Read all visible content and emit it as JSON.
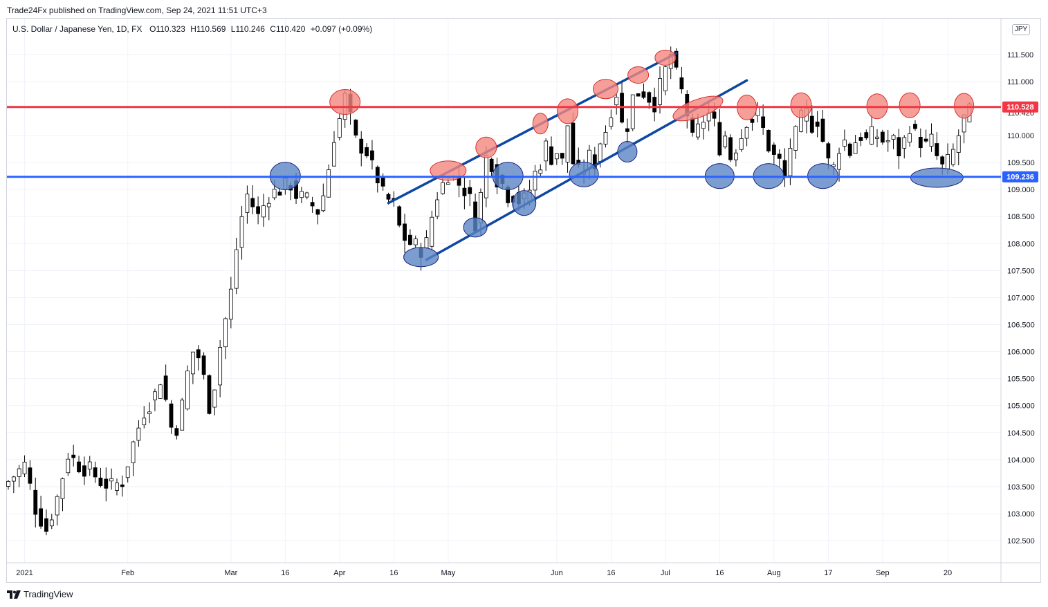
{
  "header": {
    "published": "Trade24Fx published on TradingView.com, Sep 24, 2021 11:51 UTC+3"
  },
  "legend": {
    "symbol": "U.S. Dollar / Japanese Yen, 1D, FX",
    "open": "O110.323",
    "high": "H110.569",
    "low": "L110.246",
    "close": "C110.420",
    "change": "+0.097 (+0.09%)"
  },
  "currency": "JPY",
  "footer": {
    "brand": "TradingView"
  },
  "colors": {
    "resistance": "#f23645",
    "support": "#2962ff",
    "channel": "#0d47a1",
    "red_marker_fill": "#f4877f",
    "blue_marker_fill": "#5b84c4",
    "candle_up": "#ffffff",
    "candle_down": "#000000"
  },
  "chart_data": {
    "type": "candlestick",
    "title": "U.S. Dollar / Japanese Yen, 1D, FX",
    "ylim": [
      102.0,
      112.0
    ],
    "y_ticks": [
      "102.500",
      "103.000",
      "103.500",
      "104.000",
      "104.500",
      "105.000",
      "105.500",
      "106.000",
      "106.500",
      "107.000",
      "107.500",
      "108.000",
      "108.500",
      "109.000",
      "109.500",
      "110.000",
      "110.420",
      "111.000",
      "111.500"
    ],
    "x_labels": [
      {
        "label": "2021",
        "idx": 3
      },
      {
        "label": "Feb",
        "idx": 22
      },
      {
        "label": "Mar",
        "idx": 41
      },
      {
        "label": "16",
        "idx": 51
      },
      {
        "label": "Apr",
        "idx": 61
      },
      {
        "label": "16",
        "idx": 71
      },
      {
        "label": "May",
        "idx": 81
      },
      {
        "label": "Jun",
        "idx": 101
      },
      {
        "label": "16",
        "idx": 111
      },
      {
        "label": "Jul",
        "idx": 121
      },
      {
        "label": "16",
        "idx": 131
      },
      {
        "label": "Aug",
        "idx": 141
      },
      {
        "label": "17",
        "idx": 151
      },
      {
        "label": "Sep",
        "idx": 161
      },
      {
        "label": "20",
        "idx": 173
      }
    ],
    "n_bars": 178,
    "levels": [
      {
        "name": "resistance",
        "value": 110.528,
        "label": "110.528",
        "color": "#f23645"
      },
      {
        "name": "support",
        "value": 109.236,
        "label": "109.236",
        "color": "#2962ff"
      }
    ],
    "current_price": {
      "value": 110.42,
      "label": "110.420"
    },
    "channel_lines": [
      {
        "name": "channel-upper",
        "from": {
          "idx": 70,
          "price": 108.75
        },
        "to": {
          "idx": 123,
          "price": 111.52
        }
      },
      {
        "name": "channel-lower",
        "from": {
          "idx": 77,
          "price": 107.7
        },
        "to": {
          "idx": 136,
          "price": 111.02
        }
      }
    ],
    "markers": [
      {
        "color": "red",
        "idx": 62,
        "price": 110.62,
        "rx": 22,
        "ry": 18
      },
      {
        "color": "red",
        "idx": 81,
        "price": 109.35,
        "rx": 26,
        "ry": 14
      },
      {
        "color": "red",
        "idx": 88,
        "price": 109.78,
        "rx": 15,
        "ry": 15
      },
      {
        "color": "red",
        "idx": 98,
        "price": 110.22,
        "rx": 11,
        "ry": 15
      },
      {
        "color": "red",
        "idx": 103,
        "price": 110.45,
        "rx": 15,
        "ry": 18
      },
      {
        "color": "red",
        "idx": 110,
        "price": 110.86,
        "rx": 18,
        "ry": 14
      },
      {
        "color": "red",
        "idx": 116,
        "price": 111.12,
        "rx": 15,
        "ry": 12
      },
      {
        "color": "red",
        "idx": 121,
        "price": 111.44,
        "rx": 15,
        "ry": 11
      },
      {
        "color": "red",
        "idx": 127,
        "price": 110.5,
        "rx": 38,
        "ry": 13,
        "rot": -20
      },
      {
        "color": "red",
        "idx": 136,
        "price": 110.52,
        "rx": 14,
        "ry": 18
      },
      {
        "color": "red",
        "idx": 146,
        "price": 110.56,
        "rx": 15,
        "ry": 18
      },
      {
        "color": "red",
        "idx": 160,
        "price": 110.54,
        "rx": 15,
        "ry": 18
      },
      {
        "color": "red",
        "idx": 166,
        "price": 110.56,
        "rx": 15,
        "ry": 18
      },
      {
        "color": "red",
        "idx": 176,
        "price": 110.55,
        "rx": 14,
        "ry": 18
      },
      {
        "color": "blue",
        "idx": 51,
        "price": 109.25,
        "rx": 22,
        "ry": 20
      },
      {
        "color": "blue",
        "idx": 76,
        "price": 107.75,
        "rx": 25,
        "ry": 14
      },
      {
        "color": "blue",
        "idx": 86,
        "price": 108.3,
        "rx": 17,
        "ry": 14
      },
      {
        "color": "blue",
        "idx": 92,
        "price": 109.25,
        "rx": 22,
        "ry": 20
      },
      {
        "color": "blue",
        "idx": 95,
        "price": 108.75,
        "rx": 17,
        "ry": 18
      },
      {
        "color": "blue",
        "idx": 106,
        "price": 109.28,
        "rx": 21,
        "ry": 18
      },
      {
        "color": "blue",
        "idx": 114,
        "price": 109.7,
        "rx": 14,
        "ry": 15
      },
      {
        "color": "blue",
        "idx": 131,
        "price": 109.25,
        "rx": 21,
        "ry": 18
      },
      {
        "color": "blue",
        "idx": 140,
        "price": 109.25,
        "rx": 22,
        "ry": 18
      },
      {
        "color": "blue",
        "idx": 150,
        "price": 109.25,
        "rx": 22,
        "ry": 18
      },
      {
        "color": "blue",
        "idx": 171,
        "price": 109.22,
        "rx": 38,
        "ry": 14
      }
    ],
    "close_path": [
      [
        0,
        103.6
      ],
      [
        3,
        103.9
      ],
      [
        5,
        103.1
      ],
      [
        7,
        102.7
      ],
      [
        9,
        103.3
      ],
      [
        11,
        104.1
      ],
      [
        13,
        103.9
      ],
      [
        15,
        103.8
      ],
      [
        17,
        103.6
      ],
      [
        19,
        103.5
      ],
      [
        21,
        103.6
      ],
      [
        23,
        104.3
      ],
      [
        25,
        104.9
      ],
      [
        27,
        105.2
      ],
      [
        28,
        105.5
      ],
      [
        29,
        105.1
      ],
      [
        30,
        104.6
      ],
      [
        31,
        104.6
      ],
      [
        32,
        105.0
      ],
      [
        33,
        105.6
      ],
      [
        34,
        106.0
      ],
      [
        35,
        105.9
      ],
      [
        36,
        105.5
      ],
      [
        37,
        105.0
      ],
      [
        38,
        105.4
      ],
      [
        39,
        106.1
      ],
      [
        40,
        106.6
      ],
      [
        41,
        107.1
      ],
      [
        42,
        107.9
      ],
      [
        43,
        108.5
      ],
      [
        44,
        108.9
      ],
      [
        45,
        108.7
      ],
      [
        46,
        108.5
      ],
      [
        48,
        108.9
      ],
      [
        50,
        109.0
      ],
      [
        52,
        109.1
      ],
      [
        53,
        108.9
      ],
      [
        55,
        108.8
      ],
      [
        56,
        108.7
      ],
      [
        57,
        108.6
      ],
      [
        58,
        108.9
      ],
      [
        59,
        109.4
      ],
      [
        60,
        110.0
      ],
      [
        61,
        110.3
      ],
      [
        62,
        110.7
      ],
      [
        63,
        110.3
      ],
      [
        64,
        109.9
      ],
      [
        65,
        109.8
      ],
      [
        66,
        109.7
      ],
      [
        67,
        109.4
      ],
      [
        68,
        109.2
      ],
      [
        69,
        108.9
      ],
      [
        70,
        108.8
      ],
      [
        71,
        108.7
      ],
      [
        72,
        108.3
      ],
      [
        73,
        108.1
      ],
      [
        74,
        108.0
      ],
      [
        76,
        107.9
      ],
      [
        77,
        108.0
      ],
      [
        78,
        108.5
      ],
      [
        79,
        108.9
      ],
      [
        80,
        109.1
      ],
      [
        81,
        109.3
      ],
      [
        82,
        109.2
      ],
      [
        83,
        109.1
      ],
      [
        84,
        109.0
      ],
      [
        85,
        108.8
      ],
      [
        86,
        108.4
      ],
      [
        87,
        108.9
      ],
      [
        88,
        109.6
      ],
      [
        89,
        109.5
      ],
      [
        90,
        109.2
      ],
      [
        91,
        109.1
      ],
      [
        92,
        108.9
      ],
      [
        93,
        108.9
      ],
      [
        94,
        108.8
      ],
      [
        95,
        108.8
      ],
      [
        96,
        109.0
      ],
      [
        97,
        109.3
      ],
      [
        98,
        109.5
      ],
      [
        99,
        109.8
      ],
      [
        100,
        109.6
      ],
      [
        101,
        109.7
      ],
      [
        102,
        109.5
      ],
      [
        103,
        110.2
      ],
      [
        104,
        109.5
      ],
      [
        105,
        109.3
      ],
      [
        106,
        109.4
      ],
      [
        107,
        109.6
      ],
      [
        108,
        109.5
      ],
      [
        109,
        109.9
      ],
      [
        110,
        110.1
      ],
      [
        111,
        110.5
      ],
      [
        112,
        110.8
      ],
      [
        113,
        110.2
      ],
      [
        114,
        110.2
      ],
      [
        115,
        110.7
      ],
      [
        116,
        110.8
      ],
      [
        117,
        110.8
      ],
      [
        118,
        110.7
      ],
      [
        119,
        110.6
      ],
      [
        120,
        110.9
      ],
      [
        121,
        111.2
      ],
      [
        122,
        111.5
      ],
      [
        123,
        111.1
      ],
      [
        124,
        110.8
      ],
      [
        125,
        110.4
      ],
      [
        126,
        109.9
      ],
      [
        127,
        110.1
      ],
      [
        128,
        110.3
      ],
      [
        129,
        110.4
      ],
      [
        130,
        110.2
      ],
      [
        131,
        109.8
      ],
      [
        132,
        110.0
      ],
      [
        133,
        109.6
      ],
      [
        134,
        109.8
      ],
      [
        135,
        110.0
      ],
      [
        136,
        110.3
      ],
      [
        137,
        110.3
      ],
      [
        138,
        110.4
      ],
      [
        139,
        110.1
      ],
      [
        140,
        109.8
      ],
      [
        141,
        109.6
      ],
      [
        142,
        109.5
      ],
      [
        143,
        109.2
      ],
      [
        144,
        109.8
      ],
      [
        145,
        110.0
      ],
      [
        146,
        110.3
      ],
      [
        147,
        110.4
      ],
      [
        148,
        110.2
      ],
      [
        149,
        110.3
      ],
      [
        150,
        109.9
      ],
      [
        151,
        109.5
      ],
      [
        152,
        109.4
      ],
      [
        153,
        109.8
      ],
      [
        154,
        109.9
      ],
      [
        155,
        109.7
      ],
      [
        156,
        109.9
      ],
      [
        157,
        110.0
      ],
      [
        158,
        109.9
      ],
      [
        159,
        110.0
      ],
      [
        160,
        110.0
      ],
      [
        161,
        109.9
      ],
      [
        162,
        109.9
      ],
      [
        163,
        109.9
      ],
      [
        164,
        109.7
      ],
      [
        165,
        109.9
      ],
      [
        166,
        110.2
      ],
      [
        167,
        110.0
      ],
      [
        168,
        109.9
      ],
      [
        169,
        109.8
      ],
      [
        170,
        109.9
      ],
      [
        171,
        109.6
      ],
      [
        172,
        109.4
      ],
      [
        173,
        109.5
      ],
      [
        174,
        109.7
      ],
      [
        175,
        110.0
      ],
      [
        176,
        110.3
      ],
      [
        177,
        110.42
      ]
    ]
  }
}
